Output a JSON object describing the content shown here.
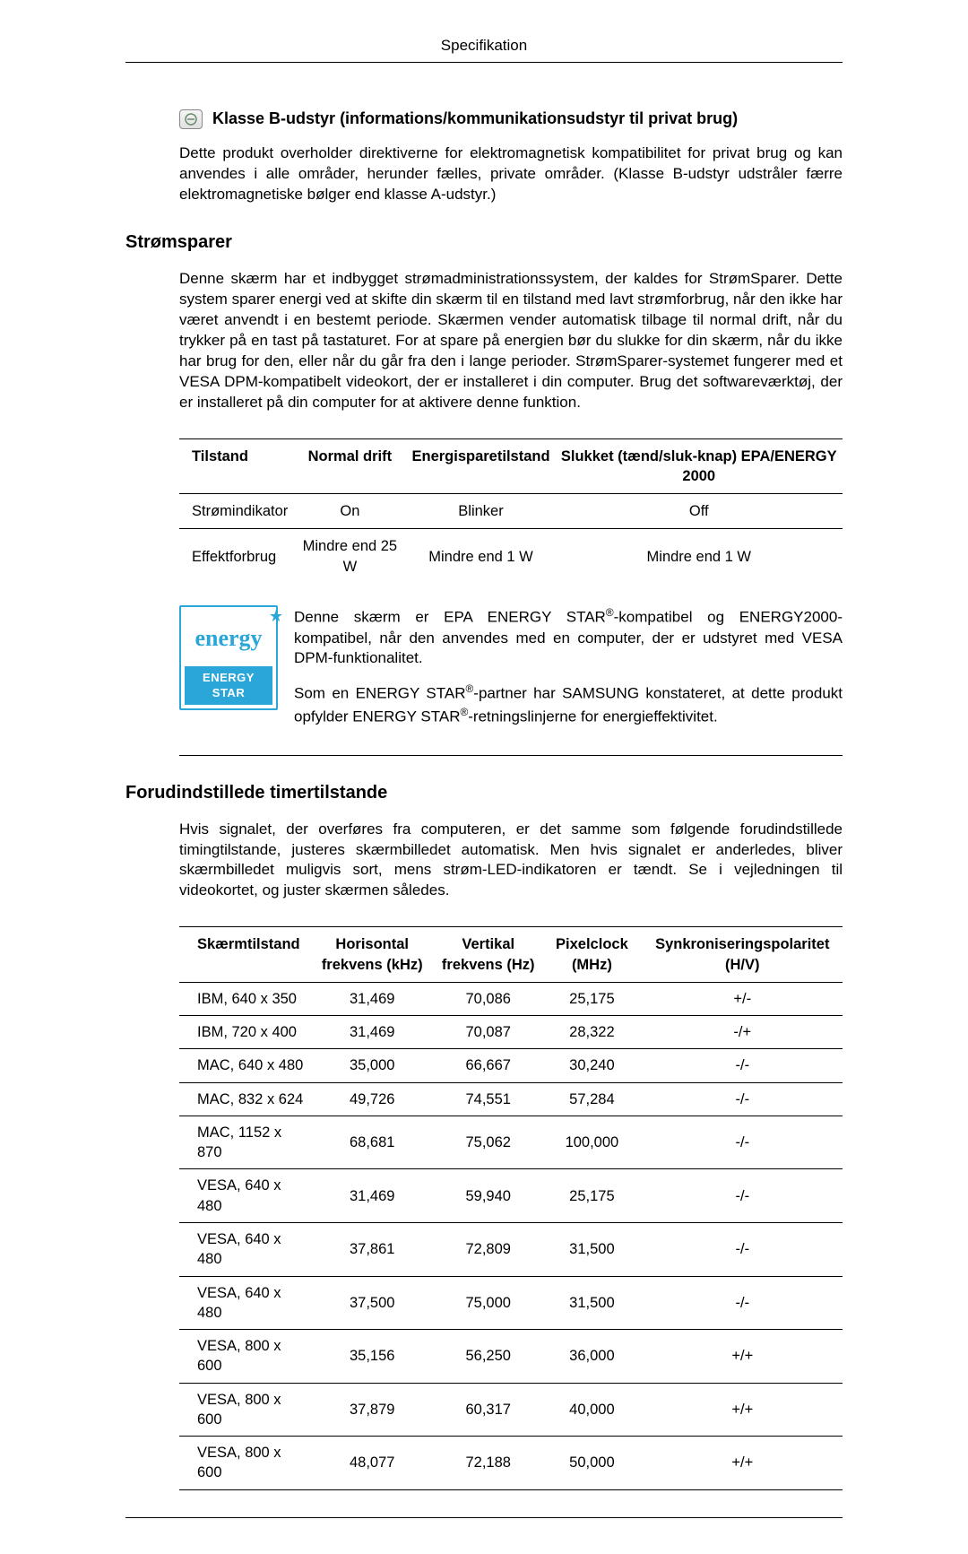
{
  "header": {
    "title": "Specifikation"
  },
  "classB": {
    "heading": "Klasse B-udstyr (informations/kommunikationsudstyr til privat brug)",
    "body": "Dette produkt overholder direktiverne for elektromagnetisk kompatibilitet for privat brug og kan anvendes i alle områder, herunder fælles, private områder. (Klasse B-udstyr udstråler færre elektromagnetiske bølger end klasse A-udstyr.)"
  },
  "powerSaver": {
    "heading": "Strømsparer",
    "body": "Denne skærm har et indbygget strømadministrationssystem, der kaldes for StrømSparer. Dette system sparer energi ved at skifte din skærm til en tilstand med lavt strømforbrug, når den ikke har været anvendt i en bestemt periode. Skærmen vender automatisk tilbage til normal drift, når du trykker på en tast på tastaturet. For at spare på energien bør du slukke for din skærm, når du ikke har brug for den, eller når du går fra den i lange perioder. StrømSparer-systemet fungerer med et VESA DPM-kompatibelt videokort, der er installeret i din computer. Brug det softwareværktøj, der er installeret på din computer for at aktivere denne funktion.",
    "table": {
      "columns": [
        "Tilstand",
        "Normal drift",
        "Energisparetilstand",
        "Slukket (tænd/sluk-knap) EPA/ENERGY 2000"
      ],
      "rows": [
        [
          "Strømindikator",
          "On",
          "Blinker",
          "Off"
        ],
        [
          "Effektforbrug",
          "Mindre end 25 W",
          "Mindre end 1 W",
          "Mindre end 1 W"
        ]
      ]
    },
    "energyStar": {
      "logoTop": "energy",
      "logoBottom": "ENERGY STAR",
      "p1_a": "Denne skærm er EPA ENERGY STAR",
      "p1_b": "-kompatibel og ENERGY2000-kompatibel, når den anvendes med en computer, der er udstyret med VESA DPM-funktionalitet.",
      "p2_a": "Som en ENERGY STAR",
      "p2_b": "-partner har SAMSUNG konstateret, at dette produkt opfylder ENERGY STAR",
      "p2_c": "-retningslinjerne for energieffektivitet."
    }
  },
  "timing": {
    "heading": "Forudindstillede timertilstande",
    "body": "Hvis signalet, der overføres fra computeren, er det samme som følgende forudindstillede timingtilstande, justeres skærmbilledet automatisk. Men hvis signalet er anderledes, bliver skærmbilledet muligvis sort, mens strøm-LED-indikatoren er tændt. Se i vejledningen til videokortet, og juster skærmen således.",
    "table": {
      "columns": [
        "Skærmtilstand",
        "Horisontal frekvens (kHz)",
        "Vertikal frekvens (Hz)",
        "Pixelclock (MHz)",
        "Synkroniseringspolaritet (H/V)"
      ],
      "rows": [
        [
          "IBM, 640 x 350",
          "31,469",
          "70,086",
          "25,175",
          "+/-"
        ],
        [
          "IBM, 720 x 400",
          "31,469",
          "70,087",
          "28,322",
          "-/+"
        ],
        [
          "MAC, 640 x 480",
          "35,000",
          "66,667",
          "30,240",
          "-/-"
        ],
        [
          "MAC, 832 x 624",
          "49,726",
          "74,551",
          "57,284",
          "-/-"
        ],
        [
          "MAC, 1152 x 870",
          "68,681",
          "75,062",
          "100,000",
          "-/-"
        ],
        [
          "VESA, 640 x 480",
          "31,469",
          "59,940",
          "25,175",
          "-/-"
        ],
        [
          "VESA, 640 x 480",
          "37,861",
          "72,809",
          "31,500",
          "-/-"
        ],
        [
          "VESA, 640 x 480",
          "37,500",
          "75,000",
          "31,500",
          "-/-"
        ],
        [
          "VESA, 800 x 600",
          "35,156",
          "56,250",
          "36,000",
          "+/+"
        ],
        [
          "VESA, 800 x 600",
          "37,879",
          "60,317",
          "40,000",
          "+/+"
        ],
        [
          "VESA, 800 x 600",
          "48,077",
          "72,188",
          "50,000",
          "+/+"
        ]
      ]
    }
  }
}
